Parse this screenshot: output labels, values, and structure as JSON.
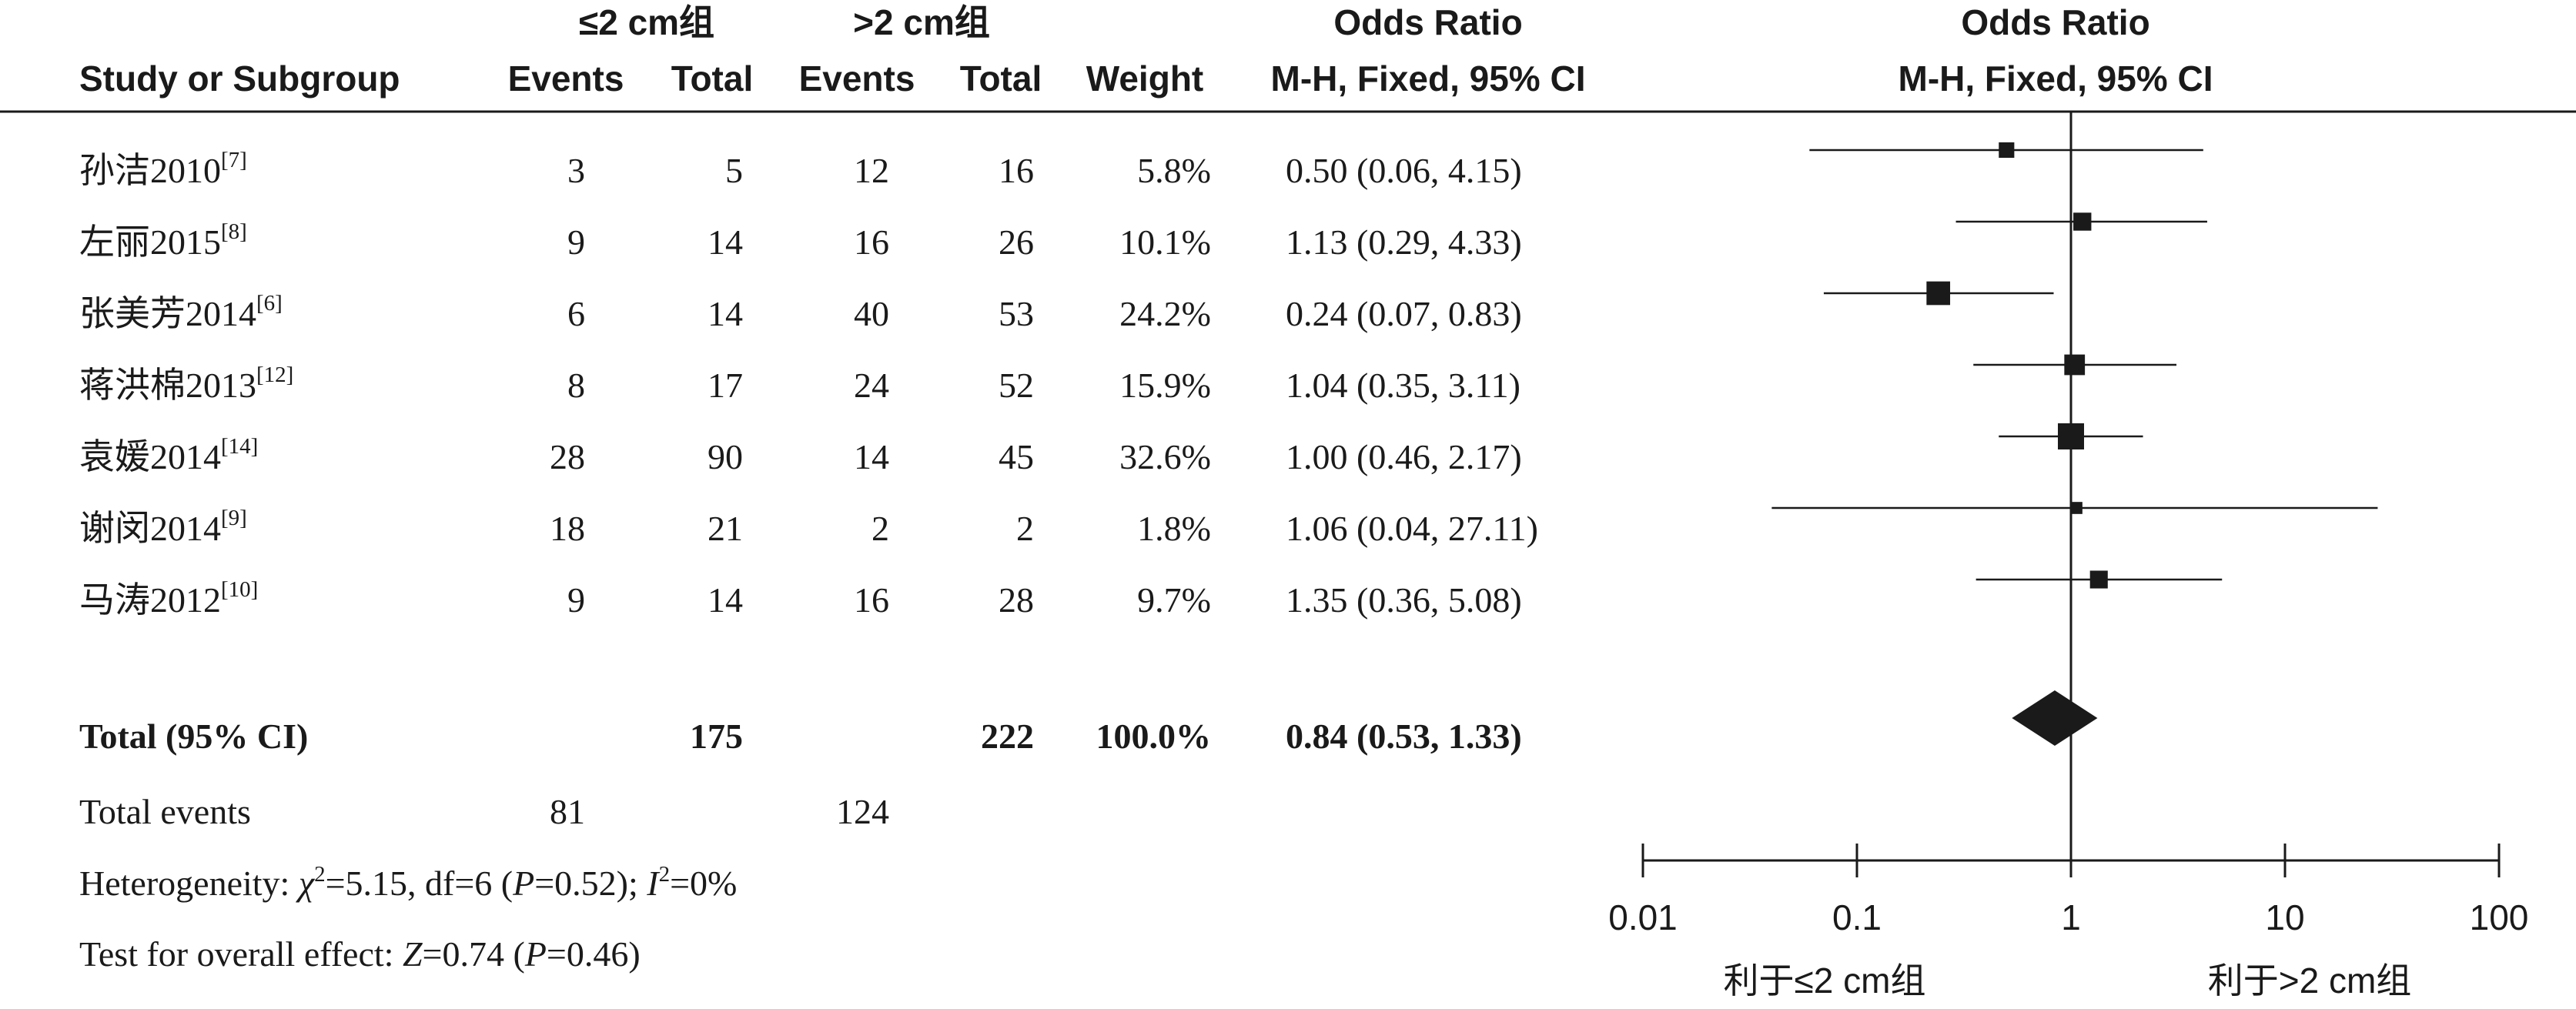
{
  "headers": {
    "group1": "≤2 cm组",
    "group2": ">2 cm组",
    "study": "Study or Subgroup",
    "events": "Events",
    "total": "Total",
    "weight": "Weight",
    "or_title": "Odds Ratio",
    "or_method": "M-H, Fixed, 95% CI",
    "plot_title": "Odds Ratio",
    "plot_method": "M-H, Fixed, 95% CI"
  },
  "studies": [
    {
      "name": "孙洁2010",
      "ref": "[7]",
      "e1": "3",
      "t1": "5",
      "e2": "12",
      "t2": "16",
      "weight": "5.8%",
      "ci_text": "0.50 (0.06, 4.15)"
    },
    {
      "name": "左丽2015",
      "ref": "[8]",
      "e1": "9",
      "t1": "14",
      "e2": "16",
      "t2": "26",
      "weight": "10.1%",
      "ci_text": "1.13 (0.29, 4.33)"
    },
    {
      "name": "张美芳2014",
      "ref": "[6]",
      "e1": "6",
      "t1": "14",
      "e2": "40",
      "t2": "53",
      "weight": "24.2%",
      "ci_text": "0.24 (0.07, 0.83)"
    },
    {
      "name": "蒋洪棉2013",
      "ref": "[12]",
      "e1": "8",
      "t1": "17",
      "e2": "24",
      "t2": "52",
      "weight": "15.9%",
      "ci_text": "1.04 (0.35, 3.11)"
    },
    {
      "name": "袁媛2014",
      "ref": "[14]",
      "e1": "28",
      "t1": "90",
      "e2": "14",
      "t2": "45",
      "weight": "32.6%",
      "ci_text": "1.00 (0.46, 2.17)"
    },
    {
      "name": "谢闵2014",
      "ref": "[9]",
      "e1": "18",
      "t1": "21",
      "e2": "2",
      "t2": "2",
      "weight": "1.8%",
      "ci_text": "1.06 (0.04, 27.11)"
    },
    {
      "name": "马涛2012",
      "ref": "[10]",
      "e1": "9",
      "t1": "14",
      "e2": "16",
      "t2": "28",
      "weight": "9.7%",
      "ci_text": "1.35 (0.36, 5.08)"
    }
  ],
  "total": {
    "label": "Total (95% CI)",
    "t1": "175",
    "t2": "222",
    "weight": "100.0%",
    "ci_text": "0.84 (0.53, 1.33)"
  },
  "total_events": {
    "label": "Total events",
    "e1": "81",
    "e2": "124"
  },
  "heterogeneity": {
    "prefix": "Heterogeneity: ",
    "chi_symbol": "χ",
    "chi_sup": "2",
    "chi_value": "=5.15, df=6 (",
    "p_symbol": "P",
    "p_value": "=0.52); ",
    "i_symbol": "I",
    "i_sup": "2",
    "i_value": "=0%"
  },
  "overall_effect": {
    "prefix": "Test for overall effect: ",
    "z_symbol": "Z",
    "z_value": "=0.74 (",
    "p_symbol": "P",
    "p_value": "=0.46)"
  },
  "axis": {
    "ticks": [
      "0.01",
      "0.1",
      "1",
      "10",
      "100"
    ],
    "left_label": "利于≤2 cm组",
    "right_label": "利于>2 cm组"
  },
  "chart_data": {
    "type": "forest",
    "x_scale": "log",
    "xlim": [
      0.01,
      100
    ],
    "reference_line": 1,
    "series": [
      {
        "name": "孙洁2010",
        "or": 0.5,
        "lower": 0.06,
        "upper": 4.15,
        "weight": 5.8
      },
      {
        "name": "左丽2015",
        "or": 1.13,
        "lower": 0.29,
        "upper": 4.33,
        "weight": 10.1
      },
      {
        "name": "张美芳2014",
        "or": 0.24,
        "lower": 0.07,
        "upper": 0.83,
        "weight": 24.2
      },
      {
        "name": "蒋洪棉2013",
        "or": 1.04,
        "lower": 0.35,
        "upper": 3.11,
        "weight": 15.9
      },
      {
        "name": "袁媛2014",
        "or": 1.0,
        "lower": 0.46,
        "upper": 2.17,
        "weight": 32.6
      },
      {
        "name": "谢闵2014",
        "or": 1.06,
        "lower": 0.04,
        "upper": 27.11,
        "weight": 1.8
      },
      {
        "name": "马涛2012",
        "or": 1.35,
        "lower": 0.36,
        "upper": 5.08,
        "weight": 9.7
      }
    ],
    "pooled": {
      "or": 0.84,
      "lower": 0.53,
      "upper": 1.33
    }
  }
}
